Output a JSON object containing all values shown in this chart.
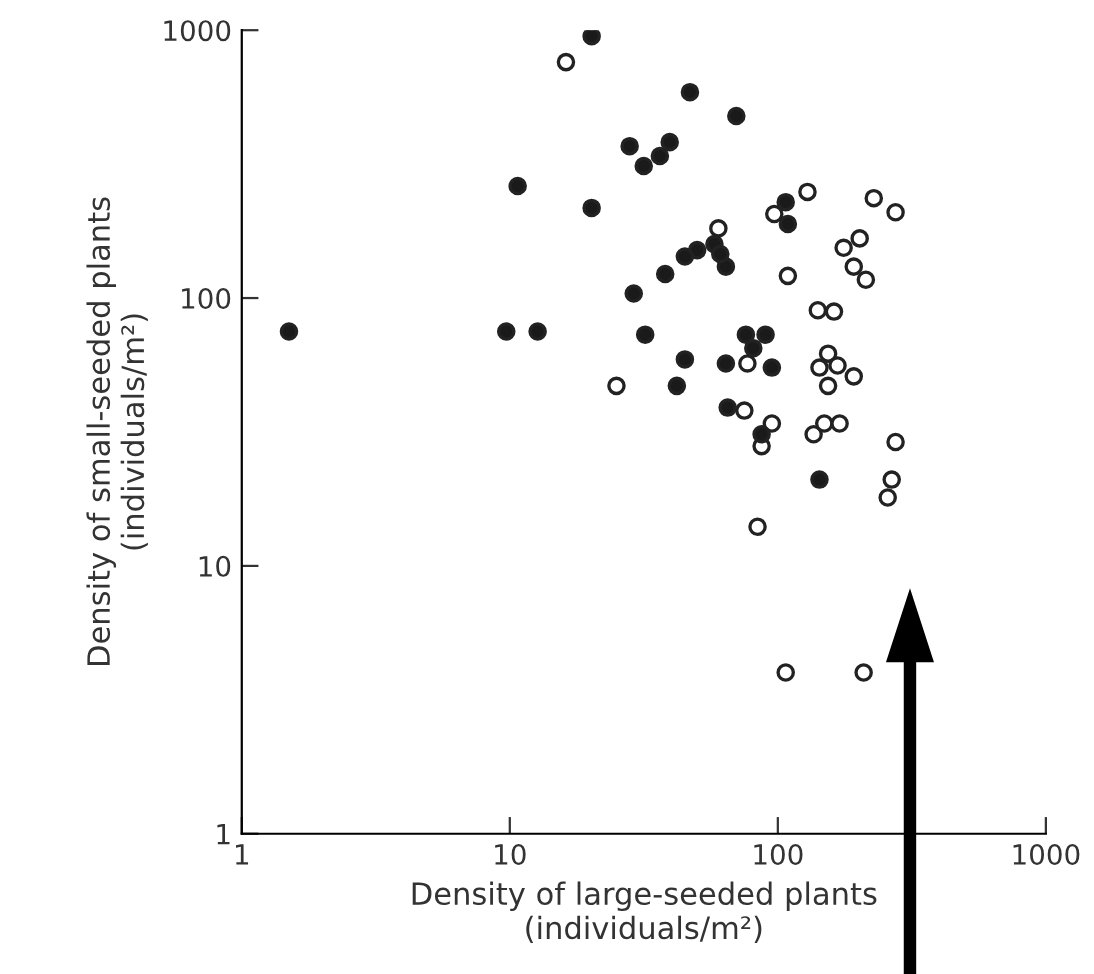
{
  "chart_data": {
    "type": "scatter",
    "xlabel": "Density of large-seeded plants\n(individuals/m²)",
    "ylabel": "Density of small-seeded plants\n(individuals/m²)",
    "log": "xy",
    "xlim": [
      1,
      1000
    ],
    "ylim": [
      1,
      1000
    ],
    "xticks": [
      1,
      10,
      100,
      1000
    ],
    "yticks": [
      1,
      10,
      100,
      1000
    ],
    "grid": false,
    "legend": false,
    "marker": "circle",
    "series": [
      {
        "color": "#1a1a1a",
        "x": [
          1.5,
          10.7,
          9.7,
          12.7,
          20.2,
          20.2,
          47,
          70,
          28,
          39.5,
          36.3,
          31.6,
          107,
          109,
          58,
          50,
          45,
          64,
          61,
          38,
          29,
          32,
          76,
          90,
          81,
          45,
          64,
          95,
          42,
          65,
          87,
          143
        ],
        "values": [
          75,
          262,
          75,
          75,
          217,
          950,
          587,
          478,
          369,
          382,
          339,
          311,
          228,
          189,
          159,
          151,
          143,
          131,
          146,
          123,
          104,
          73,
          73,
          73,
          65,
          59,
          57,
          55,
          47,
          39,
          31,
          21
        ]
      },
      {
        "color": "#ffffff",
        "x": [
          16.2,
          129,
          97,
          228,
          275,
          60,
          202,
          176,
          192,
          213,
          109,
          141,
          162,
          77,
          154,
          143,
          167,
          192,
          154,
          25,
          75,
          95,
          87,
          136,
          149,
          170,
          275,
          266,
          257,
          84,
          107,
          209
        ],
        "values": [
          760,
          249,
          206,
          236,
          209,
          182,
          167,
          154,
          131,
          117,
          121,
          90,
          89,
          57,
          62,
          55,
          56,
          51,
          47,
          47,
          38,
          34,
          28,
          31,
          34,
          34,
          29,
          21,
          18,
          14,
          4,
          4
        ]
      }
    ]
  }
}
